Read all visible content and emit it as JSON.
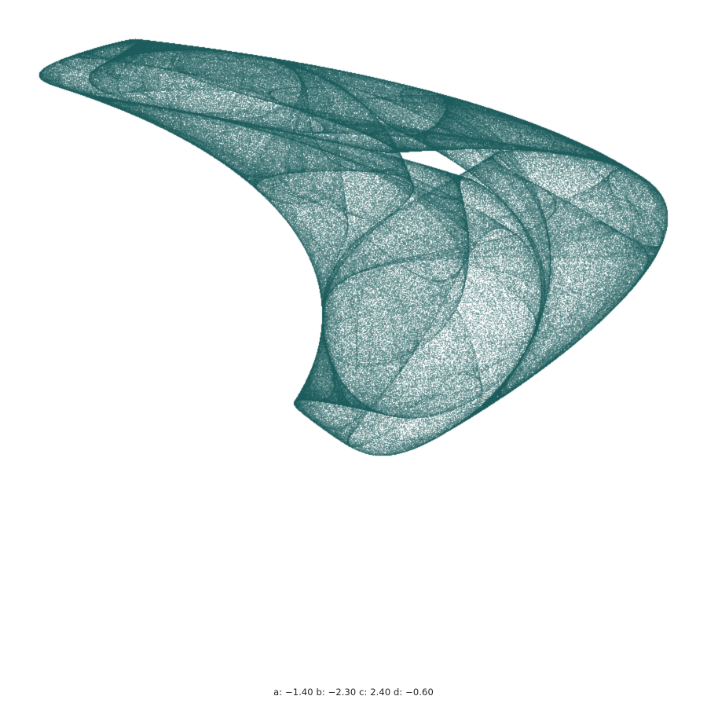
{
  "attractor": {
    "params": {
      "a": -1.4,
      "b": -2.3,
      "c": 2.4,
      "d": -0.6
    },
    "point_color": "#1d5c5c",
    "background": "#ffffff"
  },
  "caption": {
    "text": "a: −1.40 b: −2.30 c: 2.40 d: −0.60"
  }
}
